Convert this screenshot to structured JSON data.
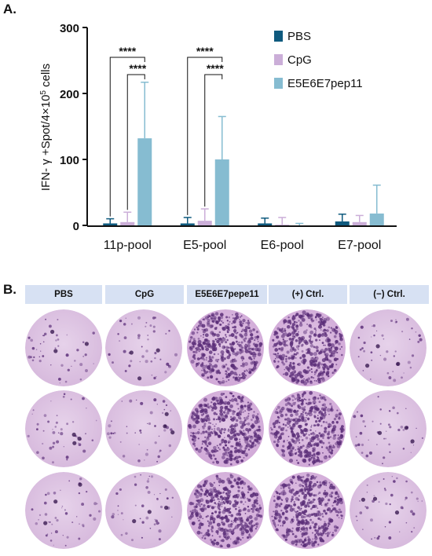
{
  "panel_a_label": "A.",
  "panel_b_label": "B.",
  "colors": {
    "PBS": "#0f5a7e",
    "CpG": "#cbaed8",
    "E5E6E7pep11": "#86bcd1"
  },
  "chart_data": {
    "type": "bar",
    "categories": [
      "11p-pool",
      "E5-pool",
      "E6-pool",
      "E7-pool"
    ],
    "ylabel": "IFN-γ +Spot/4×10⁵ cells",
    "ylabel_main": "IFN- γ +Spot/4×10",
    "ylabel_sup": "5",
    "ylabel_tail": " cells",
    "ylim": [
      0,
      300
    ],
    "yticks": [
      0,
      100,
      200,
      300
    ],
    "grid": false,
    "legend_position": "top-right",
    "series": [
      {
        "name": "PBS",
        "values": [
          3,
          3,
          3,
          6
        ],
        "errors": [
          7,
          9,
          8,
          11
        ]
      },
      {
        "name": "CpG",
        "values": [
          5,
          7,
          1,
          5
        ],
        "errors": [
          15,
          18,
          11,
          10
        ]
      },
      {
        "name": "E5E6E7pep11",
        "values": [
          132,
          100,
          0,
          18
        ],
        "errors": [
          85,
          65,
          3,
          43
        ]
      }
    ],
    "significance": [
      {
        "category": "11p-pool",
        "from": "PBS",
        "to": "E5E6E7pep11",
        "label": "****"
      },
      {
        "category": "11p-pool",
        "from": "CpG",
        "to": "E5E6E7pep11",
        "label": "****"
      },
      {
        "category": "E5-pool",
        "from": "PBS",
        "to": "E5E6E7pep11",
        "label": "****"
      },
      {
        "category": "E5-pool",
        "from": "CpG",
        "to": "E5E6E7pep11",
        "label": "****"
      }
    ]
  },
  "elispot": {
    "columns": [
      "PBS",
      "CpG",
      "E5E6E7pepe11",
      "(+) Ctrl.",
      "(−) Ctrl."
    ],
    "spot_density": [
      "low",
      "low",
      "high",
      "high",
      "low"
    ],
    "replicates": 3
  }
}
